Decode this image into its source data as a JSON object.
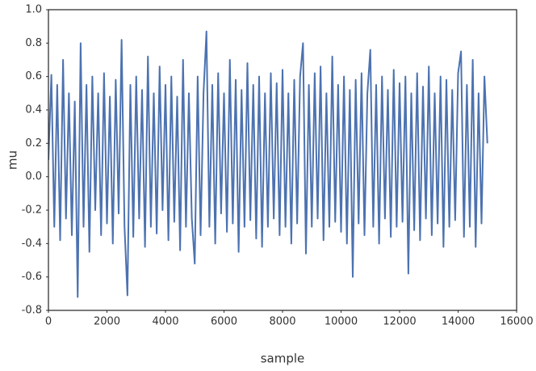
{
  "chart_data": {
    "type": "line",
    "xlabel": "sample",
    "ylabel": "mu",
    "x": [
      0,
      100,
      200,
      300,
      400,
      500,
      600,
      700,
      800,
      900,
      1000,
      1100,
      1200,
      1300,
      1400,
      1500,
      1600,
      1700,
      1800,
      1900,
      2000,
      2100,
      2200,
      2300,
      2400,
      2500,
      2600,
      2700,
      2800,
      2900,
      3000,
      3100,
      3200,
      3300,
      3400,
      3500,
      3600,
      3700,
      3800,
      3900,
      4000,
      4100,
      4200,
      4300,
      4400,
      4500,
      4600,
      4700,
      4800,
      4900,
      5000,
      5100,
      5200,
      5300,
      5400,
      5500,
      5600,
      5700,
      5800,
      5900,
      6000,
      6100,
      6200,
      6300,
      6400,
      6500,
      6600,
      6700,
      6800,
      6900,
      7000,
      7100,
      7200,
      7300,
      7400,
      7500,
      7600,
      7700,
      7800,
      7900,
      8000,
      8100,
      8200,
      8300,
      8400,
      8500,
      8600,
      8700,
      8800,
      8900,
      9000,
      9100,
      9200,
      9300,
      9400,
      9500,
      9600,
      9700,
      9800,
      9900,
      10000,
      10100,
      10200,
      10300,
      10400,
      10500,
      10600,
      10700,
      10800,
      10900,
      11000,
      11100,
      11200,
      11300,
      11400,
      11500,
      11600,
      11700,
      11800,
      11900,
      12000,
      12100,
      12200,
      12300,
      12400,
      12500,
      12600,
      12700,
      12800,
      12900,
      13000,
      13100,
      13200,
      13300,
      13400,
      13500,
      13600,
      13700,
      13800,
      13900,
      14000,
      14100,
      14200,
      14300,
      14400,
      14500,
      14600,
      14700,
      14800,
      14900,
      15000
    ],
    "series": [
      {
        "color": "#4c72b0",
        "values": [
          0.1,
          0.61,
          -0.3,
          0.55,
          -0.38,
          0.7,
          -0.25,
          0.5,
          -0.35,
          0.45,
          -0.72,
          0.8,
          -0.3,
          0.55,
          -0.45,
          0.6,
          -0.2,
          0.5,
          -0.35,
          0.62,
          -0.28,
          0.48,
          -0.4,
          0.58,
          -0.22,
          0.82,
          -0.3,
          -0.71,
          0.55,
          -0.36,
          0.6,
          -0.25,
          0.52,
          -0.42,
          0.72,
          -0.3,
          0.5,
          -0.34,
          0.66,
          -0.2,
          0.55,
          -0.38,
          0.6,
          -0.27,
          0.48,
          -0.44,
          0.7,
          -0.3,
          0.5,
          -0.25,
          -0.52,
          0.6,
          -0.35,
          0.5,
          0.87,
          -0.3,
          0.55,
          -0.4,
          0.62,
          -0.22,
          0.5,
          -0.33,
          0.7,
          -0.28,
          0.58,
          -0.45,
          0.52,
          -0.3,
          0.68,
          -0.26,
          0.55,
          -0.37,
          0.6,
          -0.42,
          0.5,
          -0.3,
          0.62,
          -0.25,
          0.56,
          -0.35,
          0.64,
          -0.3,
          0.5,
          -0.4,
          0.58,
          -0.28,
          0.6,
          0.8,
          -0.46,
          0.55,
          -0.3,
          0.62,
          -0.25,
          0.66,
          -0.38,
          0.5,
          -0.3,
          0.72,
          -0.27,
          0.55,
          -0.33,
          0.6,
          -0.4,
          0.52,
          -0.6,
          0.58,
          -0.28,
          0.62,
          -0.35,
          0.5,
          0.76,
          -0.3,
          0.55,
          -0.4,
          0.6,
          -0.25,
          0.52,
          -0.36,
          0.64,
          -0.3,
          0.56,
          -0.27,
          0.6,
          -0.58,
          0.5,
          -0.32,
          0.62,
          -0.38,
          0.54,
          -0.25,
          0.66,
          -0.35,
          0.5,
          -0.28,
          0.6,
          -0.42,
          0.58,
          -0.3,
          0.52,
          -0.26,
          0.62,
          0.75,
          -0.36,
          0.55,
          -0.3,
          0.7,
          -0.42,
          0.5,
          -0.28,
          0.6,
          0.2
        ]
      }
    ],
    "xlim": [
      0,
      16000
    ],
    "xticks": [
      0,
      2000,
      4000,
      6000,
      8000,
      10000,
      12000,
      14000,
      16000
    ],
    "ylim": [
      -0.8,
      1
    ],
    "yticks": [
      -0.8,
      -0.6,
      -0.4,
      -0.2,
      {
        "value": 0,
        "label": "0.0"
      },
      0.2,
      0.4,
      0.6,
      0.8,
      {
        "value": 1,
        "label": "1.0"
      }
    ]
  }
}
